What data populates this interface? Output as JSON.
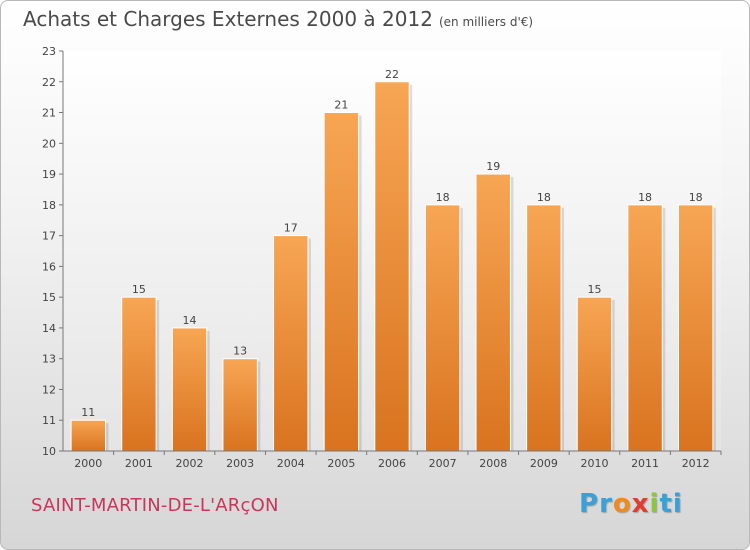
{
  "header": {
    "title": "Achats et Charges Externes 2000 à 2012",
    "subtitle": "(en milliers d'€)"
  },
  "place_name": "SAINT-MARTIN-DE-L'ARçON",
  "logo": {
    "letters": [
      "P",
      "r",
      "o",
      "x",
      "i",
      "t",
      "i"
    ],
    "colors": [
      "#3aa0d8",
      "#3aa0d8",
      "#f08a1c",
      "#e33b2e",
      "#8cc63f",
      "#3aa0d8",
      "#3aa0d8"
    ]
  },
  "chart_data": {
    "type": "bar",
    "categories": [
      "2000",
      "2001",
      "2002",
      "2003",
      "2004",
      "2005",
      "2006",
      "2007",
      "2008",
      "2009",
      "2010",
      "2011",
      "2012"
    ],
    "values": [
      11,
      15,
      14,
      13,
      17,
      21,
      22,
      18,
      19,
      18,
      15,
      18,
      18
    ],
    "title": "Achats et Charges Externes 2000 à 2012",
    "xlabel": "",
    "ylabel": "",
    "ylim": [
      10,
      23
    ],
    "yticks": [
      10,
      11,
      12,
      13,
      14,
      15,
      16,
      17,
      18,
      19,
      20,
      21,
      22,
      23
    ],
    "bar_color_top": "#f7a654",
    "bar_color_bottom": "#d9731f",
    "grid": false
  }
}
